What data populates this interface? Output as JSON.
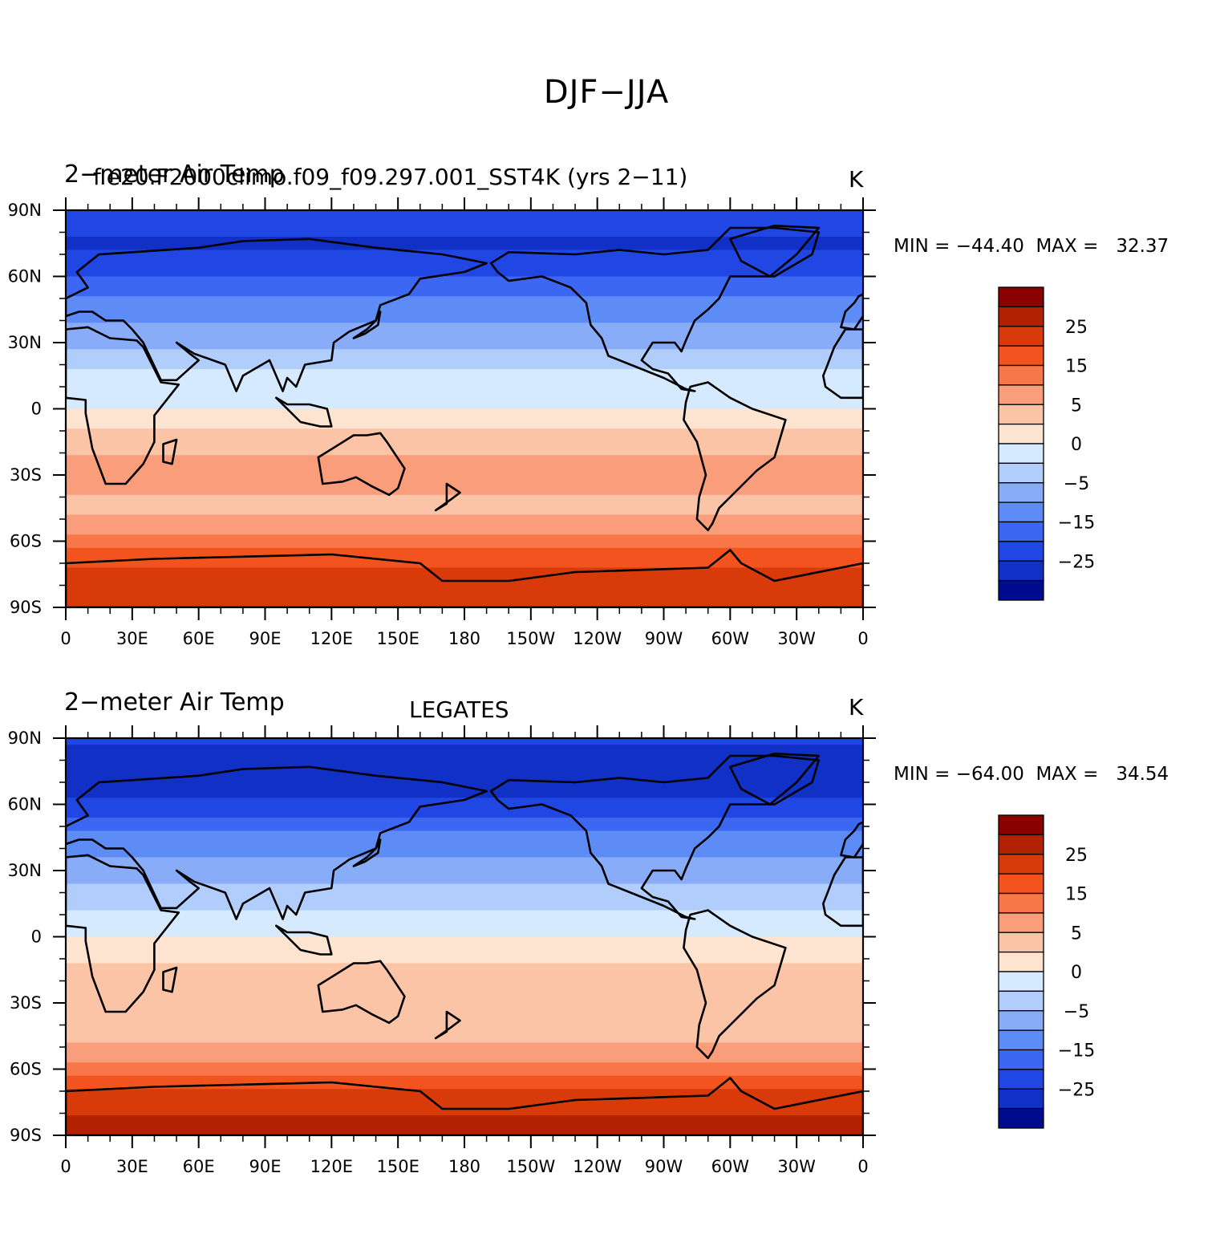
{
  "figure": {
    "title": "DJF−JJA"
  },
  "chart_data": [
    {
      "type": "heatmap",
      "variable": "2−meter Air Temp",
      "case": "f.e20.F2000climo.f09_f09.297.001_SST4K (yrs 2−11)",
      "center_string": "",
      "units": "K",
      "min_max": "MIN = −44.40  MAX =   32.37",
      "min": -44.4,
      "max": 32.37,
      "x_ticks": [
        "0",
        "30E",
        "60E",
        "90E",
        "120E",
        "150E",
        "180",
        "150W",
        "120W",
        "90W",
        "60W",
        "30W",
        "0"
      ],
      "y_ticks": [
        "90N",
        "60N",
        "30N",
        "0",
        "30S",
        "60S",
        "90S"
      ],
      "contour_levels": [
        "25",
        "15",
        "5",
        "0",
        "−5",
        "−15",
        "−25"
      ],
      "colorbar_colors": [
        "#8b0000",
        "#b22200",
        "#d83a0a",
        "#f2531f",
        "#f97649",
        "#f99d7a",
        "#fbc4a6",
        "#fde4d0",
        "#d5e9ff",
        "#b1cdfc",
        "#89acf8",
        "#5d8cf7",
        "#3b67f2",
        "#2046e3",
        "#1030c6",
        "#000c8f"
      ],
      "zonal_profile_lat": [
        90,
        75,
        60,
        45,
        30,
        15,
        0,
        -15,
        -30,
        -45,
        -60,
        -75,
        -90
      ],
      "zonal_profile_value": [
        -22,
        -26,
        -20,
        -12,
        -6,
        -2,
        0,
        4,
        6,
        4,
        12,
        22,
        24
      ]
    },
    {
      "type": "heatmap",
      "variable": "2−meter Air Temp",
      "case": "",
      "center_string": "LEGATES",
      "units": "K",
      "min_max": "MIN = −64.00  MAX =   34.54",
      "min": -64.0,
      "max": 34.54,
      "x_ticks": [
        "0",
        "30E",
        "60E",
        "90E",
        "120E",
        "150E",
        "180",
        "150W",
        "120W",
        "90W",
        "60W",
        "30W",
        "0"
      ],
      "y_ticks": [
        "90N",
        "60N",
        "30N",
        "0",
        "30S",
        "60S",
        "90S"
      ],
      "contour_levels": [
        "25",
        "15",
        "5",
        "0",
        "−5",
        "−15",
        "−25"
      ],
      "colorbar_colors": [
        "#8b0000",
        "#b22200",
        "#d83a0a",
        "#f2531f",
        "#f97649",
        "#f99d7a",
        "#fbc4a6",
        "#fde4d0",
        "#d5e9ff",
        "#b1cdfc",
        "#89acf8",
        "#5d8cf7",
        "#3b67f2",
        "#2046e3",
        "#1030c6",
        "#000c8f"
      ],
      "zonal_profile_lat": [
        90,
        75,
        60,
        45,
        30,
        15,
        0,
        -15,
        -30,
        -45,
        -60,
        -75,
        -90
      ],
      "zonal_profile_value": [
        -24,
        -30,
        -24,
        -14,
        -7,
        -3,
        0,
        3,
        5,
        3,
        12,
        24,
        26
      ]
    }
  ]
}
